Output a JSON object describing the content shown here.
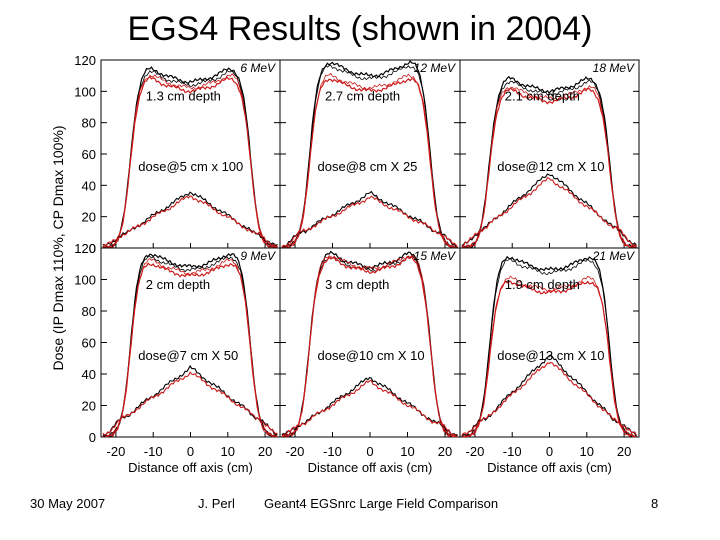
{
  "slide": {
    "title": "EGS4 Results (shown in 2004)",
    "footer_date": "30 May 2007",
    "footer_author": "J. Perl",
    "footer_center": "Geant4 EGSnrc Large Field Comparison",
    "footer_page": "8"
  },
  "colors": {
    "black_series": "#000000",
    "red_series": "#cc1a1a"
  },
  "chart_data": {
    "type": "line",
    "ylabel": "Dose (IP Dmax 110%, CP Dmax 100%)",
    "xlabel": "Distance off axis (cm)",
    "xlim": [
      -24,
      24
    ],
    "ylim": [
      0,
      120
    ],
    "yticks": [
      0,
      20,
      40,
      60,
      80,
      100,
      120
    ],
    "xticks": [
      -20,
      -10,
      0,
      10,
      20
    ],
    "series_names": [
      "EGS4 (black)",
      "EGS4 (red)"
    ],
    "panels": [
      {
        "energy": "6 MeV",
        "depth_label": "1.3 cm depth",
        "dose_label": "dose@5 cm x 100",
        "profile_top": 110,
        "red_top": 104,
        "deep_peak": 36,
        "deep_edge": 10
      },
      {
        "energy": "12 MeV",
        "depth_label": "2.7 cm depth",
        "dose_label": "dose@8 cm X 25",
        "profile_top": 114,
        "red_top": 104,
        "deep_peak": 35,
        "deep_edge": 12
      },
      {
        "energy": "18 MeV",
        "depth_label": "2.1 cm depth",
        "dose_label": "dose@12 cm X 10",
        "profile_top": 104,
        "red_top": 97,
        "deep_peak": 48,
        "deep_edge": 14
      },
      {
        "energy": "9 MeV",
        "depth_label": "2 cm depth",
        "dose_label": "dose@7 cm X 50",
        "profile_top": 112,
        "red_top": 106,
        "deep_peak": 44,
        "deep_edge": 14
      },
      {
        "energy": "15 MeV",
        "depth_label": "3 cm depth",
        "dose_label": "dose@10 cm X 10",
        "profile_top": 112,
        "red_top": 109,
        "deep_peak": 38,
        "deep_edge": 10
      },
      {
        "energy": "21 MeV",
        "depth_label": "1.9 cm depth",
        "dose_label": "dose@13 cm X 10",
        "profile_top": 110,
        "red_top": 95,
        "deep_peak": 52,
        "deep_edge": 12
      }
    ]
  }
}
